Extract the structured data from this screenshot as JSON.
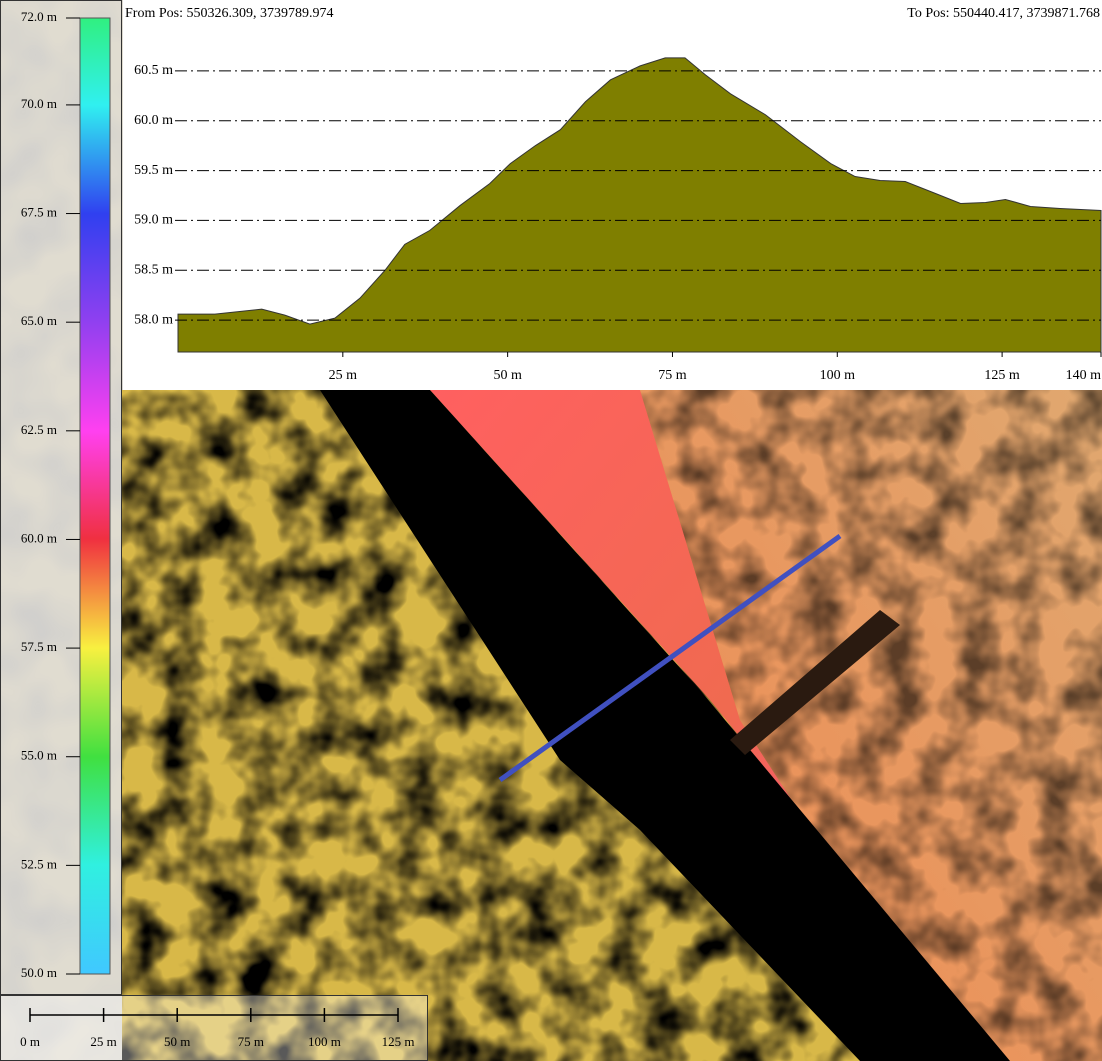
{
  "header": {
    "from": "From Pos: 550326.309, 3739789.974",
    "to": "To Pos: 550440.417, 3739871.768"
  },
  "chart_data": {
    "type": "area",
    "color": "#7f7f00",
    "grid": true,
    "x": [
      0,
      5.6,
      12.7,
      16.2,
      20.0,
      23.8,
      27.6,
      31.4,
      34.4,
      38.2,
      42.8,
      47.3,
      50.4,
      54.2,
      58.0,
      61.8,
      65.6,
      70.1,
      73.9,
      76.9,
      80.0,
      83.8,
      89.1,
      94.4,
      99.0,
      102.7,
      106.5,
      110.3,
      114.9,
      118.7,
      122.5,
      125.5,
      129.3,
      133.8,
      140.0
    ],
    "values": [
      58.06,
      58.06,
      58.11,
      58.05,
      57.96,
      58.02,
      58.22,
      58.5,
      58.76,
      58.9,
      59.15,
      59.37,
      59.57,
      59.75,
      59.91,
      60.19,
      60.41,
      60.55,
      60.63,
      60.63,
      60.46,
      60.27,
      60.06,
      59.79,
      59.57,
      59.44,
      59.4,
      59.39,
      59.27,
      59.17,
      59.18,
      59.21,
      59.14,
      59.12,
      59.1
    ],
    "xlim": [
      0,
      140
    ],
    "ylim": [
      57.68,
      60.91
    ],
    "xticks": [
      {
        "value": 25,
        "label": "25 m"
      },
      {
        "value": 50,
        "label": "50 m"
      },
      {
        "value": 75,
        "label": "75 m"
      },
      {
        "value": 100,
        "label": "100 m"
      },
      {
        "value": 125,
        "label": "125 m"
      },
      {
        "value": 140,
        "label": "140 m"
      }
    ],
    "yticks": [
      {
        "value": 58.0,
        "label": "58.0 m"
      },
      {
        "value": 58.5,
        "label": "58.5 m"
      },
      {
        "value": 59.0,
        "label": "59.0 m"
      },
      {
        "value": 59.5,
        "label": "59.5 m"
      },
      {
        "value": 60.0,
        "label": "60.0 m"
      },
      {
        "value": 60.5,
        "label": "60.5 m"
      }
    ]
  },
  "legend": {
    "range": [
      50,
      72
    ],
    "ticks": [
      {
        "value": 50,
        "label": "50.0 m"
      },
      {
        "value": 52.5,
        "label": "52.5 m"
      },
      {
        "value": 55,
        "label": "55.0 m"
      },
      {
        "value": 57.5,
        "label": "57.5 m"
      },
      {
        "value": 60,
        "label": "60.0 m"
      },
      {
        "value": 62.5,
        "label": "62.5 m"
      },
      {
        "value": 65,
        "label": "65.0 m"
      },
      {
        "value": 67.5,
        "label": "67.5 m"
      },
      {
        "value": 70,
        "label": "70.0 m"
      },
      {
        "value": 72,
        "label": "72.0 m"
      }
    ]
  },
  "scale_bar": {
    "range": [
      0,
      125
    ],
    "ticks": [
      {
        "value": 0,
        "label": "0 m"
      },
      {
        "value": 25,
        "label": "25 m"
      },
      {
        "value": 50,
        "label": "50 m"
      },
      {
        "value": 75,
        "label": "75 m"
      },
      {
        "value": 100,
        "label": "100 m"
      },
      {
        "value": 125,
        "label": "125 m"
      }
    ]
  }
}
